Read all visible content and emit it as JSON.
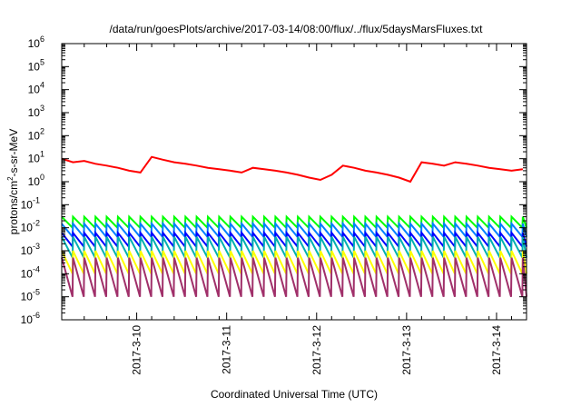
{
  "chart_data": {
    "type": "line",
    "title": "/data/run/goesPlots/archive/2017-03-14/08:00/flux/../flux/5daysMarsFluxes.txt",
    "xlabel": "Coordinated Universal Time (UTC)",
    "ylabel": {
      "base": "protons/cm",
      "sup": "2",
      "rest": "-s-sr-MeV"
    },
    "yscale": "log",
    "ylim_exp": [
      -6,
      6
    ],
    "ytick_exps": [
      -6,
      -5,
      -4,
      -3,
      -2,
      -1,
      0,
      1,
      2,
      3,
      4,
      5,
      6
    ],
    "ytick_base": "10",
    "xlim": [
      "2017-03-09T04:00",
      "2017-03-14T08:00"
    ],
    "xticks": [
      {
        "x": "2017-03-10T00:00",
        "label": "2017-3-10"
      },
      {
        "x": "2017-03-11T00:00",
        "label": "2017-3-11"
      },
      {
        "x": "2017-03-12T00:00",
        "label": "2017-3-12"
      },
      {
        "x": "2017-03-13T00:00",
        "label": "2017-3-13"
      },
      {
        "x": "2017-03-14T00:00",
        "label": "2017-3-14"
      }
    ],
    "grid": false,
    "legend": "none",
    "series": [
      {
        "color": "#ff0000",
        "x_start": "2017-03-09T04:00",
        "step_hours": 3,
        "values": [
          10,
          7,
          8,
          6,
          5,
          4,
          3,
          2.5,
          12,
          9,
          7,
          6,
          5,
          4,
          3.5,
          3,
          2.5,
          4,
          3.5,
          3,
          2.5,
          2,
          1.5,
          1.2,
          2,
          5,
          4,
          3,
          2.5,
          2,
          1.5,
          1,
          7,
          6,
          5,
          7,
          6,
          5,
          4,
          3.5,
          3,
          3.5,
          3,
          2.8,
          2.6,
          2.4,
          2.2,
          2,
          2.5,
          2.2,
          2,
          1.8,
          1.6,
          2.2,
          2,
          1.8,
          3,
          2.5,
          2,
          2.2,
          2,
          1.8,
          1.6,
          1.4,
          1.2,
          1,
          1.5,
          1.2,
          1,
          0.8,
          0.7,
          2,
          1.8,
          1.5,
          1.8,
          1.6,
          1.4,
          1.2,
          1,
          3,
          2.5,
          2,
          1.8,
          1.6,
          1.4,
          1.2,
          1,
          0.8,
          0.7,
          0.9,
          0.8,
          0.7,
          1,
          0.9,
          0.8,
          0.7,
          2,
          1.8,
          1.6,
          1.4,
          1.2,
          1,
          3,
          2.5,
          2,
          1.8,
          1.6,
          4,
          3.5,
          3,
          2.5,
          2,
          3,
          2.5,
          2,
          1.8,
          1.6,
          1.4,
          1.2,
          1,
          1.5,
          1.3,
          1.2,
          2,
          1.8,
          1.6,
          1.5,
          1.3,
          1.2,
          2.5,
          2.2,
          2,
          1.8,
          1.6,
          1.4,
          1.2,
          1,
          4,
          3.5,
          3,
          2.5,
          2,
          1.8,
          1.6,
          3,
          2.5,
          2,
          1.8,
          1.6,
          1.5
        ]
      },
      {
        "color": "#00ff00",
        "cycle_hours": 3,
        "peak": 0.03,
        "low": 0.01,
        "start": "2017-03-09T04:00"
      },
      {
        "color": "#0080ff",
        "cycle_hours": 3,
        "peak": 0.015,
        "low": 0.004,
        "start": "2017-03-09T04:00"
      },
      {
        "color": "#0000ff",
        "cycle_hours": 3,
        "peak": 0.006,
        "low": 0.0015,
        "start": "2017-03-09T04:00"
      },
      {
        "color": "#00b0b0",
        "cycle_hours": 3,
        "peak": 0.004,
        "low": 0.0005,
        "start": "2017-03-09T04:00"
      },
      {
        "color": "#ffff00",
        "cycle_hours": 3,
        "peak": 0.001,
        "low": 0.0001,
        "start": "2017-03-09T04:00"
      },
      {
        "color": "#a0306a",
        "cycle_hours": 3,
        "peak": 0.0005,
        "low": 1e-05,
        "start": "2017-03-09T04:00"
      }
    ]
  }
}
